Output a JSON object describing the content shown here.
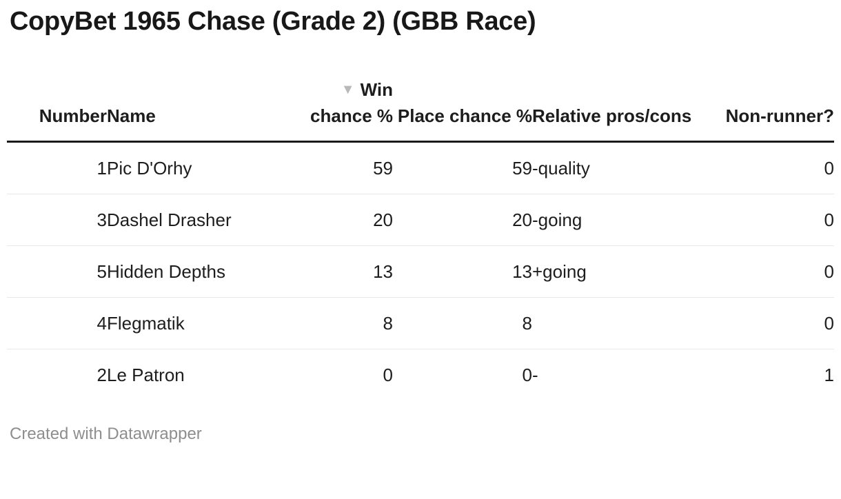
{
  "title": "CopyBet 1965 Chase (Grade 2) (GBB Race)",
  "table": {
    "sort_icon": "▼",
    "sort": {
      "column": "win_chance",
      "direction": "desc"
    },
    "columns": [
      {
        "key": "number",
        "label": "Number",
        "align": "right",
        "sorted": false
      },
      {
        "key": "name",
        "label": "Name",
        "align": "left",
        "sorted": false
      },
      {
        "key": "win_chance",
        "label": "Win chance %",
        "align": "right",
        "sorted": true
      },
      {
        "key": "place_chance",
        "label": "Place chance %",
        "align": "right",
        "sorted": false
      },
      {
        "key": "pros_cons",
        "label": "Relative pros/cons",
        "align": "left",
        "sorted": false
      },
      {
        "key": "non_runner",
        "label": "Non-runner?",
        "align": "right",
        "sorted": false
      }
    ],
    "rows": [
      [
        "1",
        "Pic D'Orhy",
        "59",
        "59",
        "-quality",
        "0"
      ],
      [
        "3",
        "Dashel Drasher",
        "20",
        "20",
        "-going",
        "0"
      ],
      [
        "5",
        "Hidden Depths",
        "13",
        "13",
        "+going",
        "0"
      ],
      [
        "4",
        "Flegmatik",
        "8",
        "8",
        "",
        "0"
      ],
      [
        "2",
        "Le Patron",
        "0",
        "0",
        "-",
        "1"
      ]
    ]
  },
  "footer": {
    "attribution": "Created with Datawrapper"
  },
  "colors": {
    "header_rule": "#1a1a1a",
    "row_divider": "#e8e8e8",
    "sort_arrow": "#b9b9b9",
    "footer_text": "#8e8e8e"
  },
  "chart_data": {
    "type": "table",
    "title": "CopyBet 1965 Chase (Grade 2) (GBB Race)",
    "columns": [
      "Number",
      "Name",
      "Win chance %",
      "Place chance %",
      "Relative pros/cons",
      "Non-runner?"
    ],
    "rows": [
      [
        1,
        "Pic D'Orhy",
        59,
        59,
        "-quality",
        0
      ],
      [
        3,
        "Dashel Drasher",
        20,
        20,
        "-going",
        0
      ],
      [
        5,
        "Hidden Depths",
        13,
        13,
        "+going",
        0
      ],
      [
        4,
        "Flegmatik",
        8,
        8,
        "",
        0
      ],
      [
        2,
        "Le Patron",
        0,
        0,
        "-",
        1
      ]
    ],
    "sort": {
      "column": "Win chance %",
      "direction": "desc"
    },
    "attribution": "Created with Datawrapper"
  }
}
